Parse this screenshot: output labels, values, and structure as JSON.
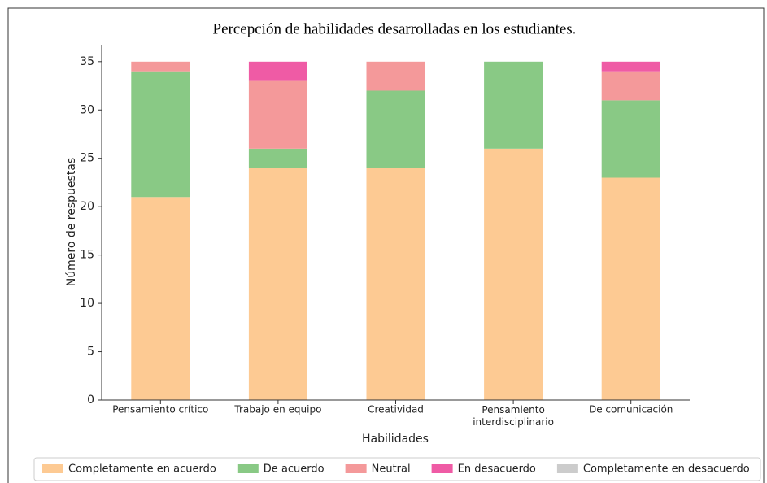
{
  "chart_data": {
    "type": "stacked_bar",
    "title": "Percepción de habilidades desarrolladas en los estudiantes.",
    "x_label": "Habilidades",
    "y_label": "Número de respuestas",
    "categories": [
      "Pensamiento crítico",
      "Trabajo en equipo",
      "Creatividad",
      "Pensamiento interdisciplinario",
      "De comunicación"
    ],
    "series": [
      {
        "name": "Completamente en acuerdo",
        "color": "#fdca93",
        "values": [
          21,
          24,
          24,
          26,
          23
        ]
      },
      {
        "name": "De acuerdo",
        "color": "#89c985",
        "values": [
          13,
          2,
          8,
          9,
          8
        ]
      },
      {
        "name": "Neutral",
        "color": "#f4999a",
        "values": [
          1,
          7,
          3,
          0,
          3
        ]
      },
      {
        "name": "En desacuerdo",
        "color": "#ef5ba5",
        "values": [
          0,
          2,
          0,
          0,
          1
        ]
      },
      {
        "name": "Completamente en desacuerdo",
        "color": "#cccccc",
        "values": [
          0,
          0,
          0,
          0,
          0
        ]
      }
    ],
    "ylim": [
      0,
      36.75
    ],
    "yticks": [
      0,
      5,
      10,
      15,
      20,
      25,
      30,
      35
    ],
    "legend": "bottom"
  }
}
